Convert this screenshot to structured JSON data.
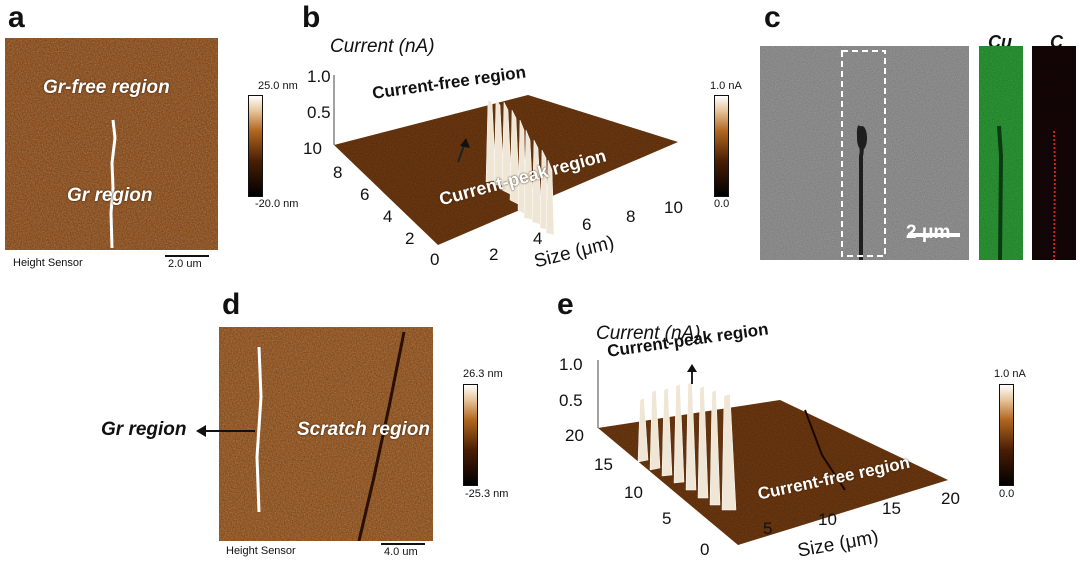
{
  "panel_a": {
    "label": "a",
    "text_gr_free": "Gr-free region",
    "text_gr": "Gr region",
    "sensor": "Height Sensor",
    "scalebar": "2.0 um",
    "cbar_max": "25.0 nm",
    "cbar_min": "-20.0 nm"
  },
  "panel_b": {
    "label": "b",
    "zaxis_title": "Current (nA)",
    "z_ticks": [
      "1.0",
      "0.5"
    ],
    "y_ticks": [
      "10",
      "8",
      "6",
      "4",
      "2"
    ],
    "x_ticks": [
      "0",
      "2",
      "4",
      "6",
      "8",
      "10"
    ],
    "xaxis_title": "Size (μm)",
    "text_free": "Current-free region",
    "text_peak": "Current-peak region",
    "cbar_max": "1.0 nA",
    "cbar_min": "0.0"
  },
  "panel_c": {
    "label": "c",
    "map_cu": "Cu",
    "map_c": "C",
    "scalebar": "2 μm"
  },
  "panel_d": {
    "label": "d",
    "text_gr": "Gr region",
    "text_scratch": "Scratch region",
    "sensor": "Height Sensor",
    "scalebar": "4.0 um",
    "cbar_max": "26.3 nm",
    "cbar_min": "-25.3 nm"
  },
  "panel_e": {
    "label": "e",
    "zaxis_title": "Current (nA)",
    "z_ticks": [
      "1.0",
      "0.5"
    ],
    "y_ticks": [
      "20",
      "15",
      "10",
      "5"
    ],
    "x_ticks": [
      "0",
      "5",
      "10",
      "15",
      "20"
    ],
    "xaxis_title": "Size (μm)",
    "text_peak": "Current-peak region",
    "text_free": "Current-free region",
    "cbar_max": "1.0 nA",
    "cbar_min": "0.0"
  },
  "colors": {
    "afm_copper": "#a0561a",
    "current_brown": "#6a3410",
    "cu_green": "#2fa33a",
    "c_red": "#d02020"
  }
}
